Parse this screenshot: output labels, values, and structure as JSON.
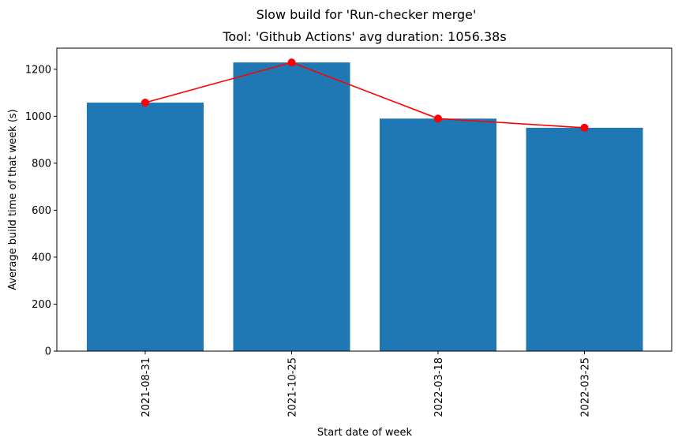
{
  "chart_data": {
    "type": "bar",
    "suptitle": "Slow build for 'Run-checker merge'",
    "title": "Tool: 'Github Actions' avg duration: 1056.38s",
    "xlabel": "Start date of week",
    "ylabel": "Average build time of that week (s)",
    "categories": [
      "2021-08-31",
      "2021-10-25",
      "2022-03-18",
      "2022-03-25"
    ],
    "values": [
      1058,
      1229,
      990,
      951
    ],
    "line_values": [
      1058,
      1229,
      990,
      951
    ],
    "yticks": [
      0,
      200,
      400,
      600,
      800,
      1000,
      1200
    ],
    "ylim": [
      0,
      1290
    ],
    "grid": false,
    "colors": {
      "bar": "#1f77b4",
      "line": "#ff0000",
      "marker": "#ff0000"
    }
  }
}
